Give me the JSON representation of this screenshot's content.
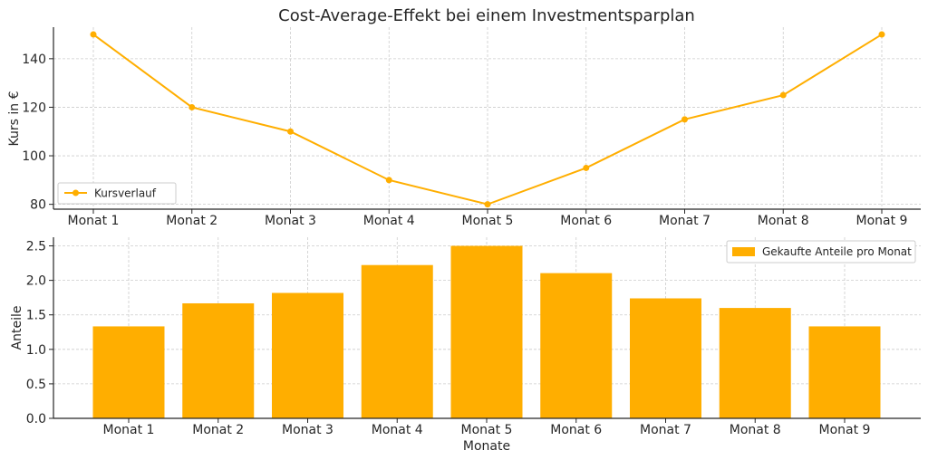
{
  "title": "Cost-Average-Effekt bei einem Investmentsparplan",
  "colors": {
    "series": "#FFAE00",
    "grid": "#cccccc",
    "text": "#262626"
  },
  "chart_data": [
    {
      "type": "line",
      "categories": [
        "Monat 1",
        "Monat 2",
        "Monat 3",
        "Monat 4",
        "Monat 5",
        "Monat 6",
        "Monat 7",
        "Monat 8",
        "Monat 9"
      ],
      "series": [
        {
          "name": "Kursverlauf",
          "values": [
            150,
            120,
            110,
            90,
            80,
            95,
            115,
            125,
            150
          ]
        }
      ],
      "ylabel": "Kurs in €",
      "ylim": [
        78,
        153
      ],
      "yticks": [
        80,
        100,
        120,
        140
      ],
      "grid": true,
      "legend": "bottom-left"
    },
    {
      "type": "bar",
      "categories": [
        "Monat 1",
        "Monat 2",
        "Monat 3",
        "Monat 4",
        "Monat 5",
        "Monat 6",
        "Monat 7",
        "Monat 8",
        "Monat 9"
      ],
      "series": [
        {
          "name": "Gekaufte Anteile pro Monat",
          "values": [
            1.333,
            1.667,
            1.818,
            2.222,
            2.5,
            2.105,
            1.739,
            1.6,
            1.333
          ]
        }
      ],
      "xlabel": "Monate",
      "ylabel": "Anteile",
      "ylim": [
        0,
        2.625
      ],
      "yticks": [
        0.0,
        0.5,
        1.0,
        1.5,
        2.0,
        2.5
      ],
      "ytick_labels": [
        "0.0",
        "0.5",
        "1.0",
        "1.5",
        "2.0",
        "2.5"
      ],
      "grid": true,
      "legend": "top-right"
    }
  ]
}
